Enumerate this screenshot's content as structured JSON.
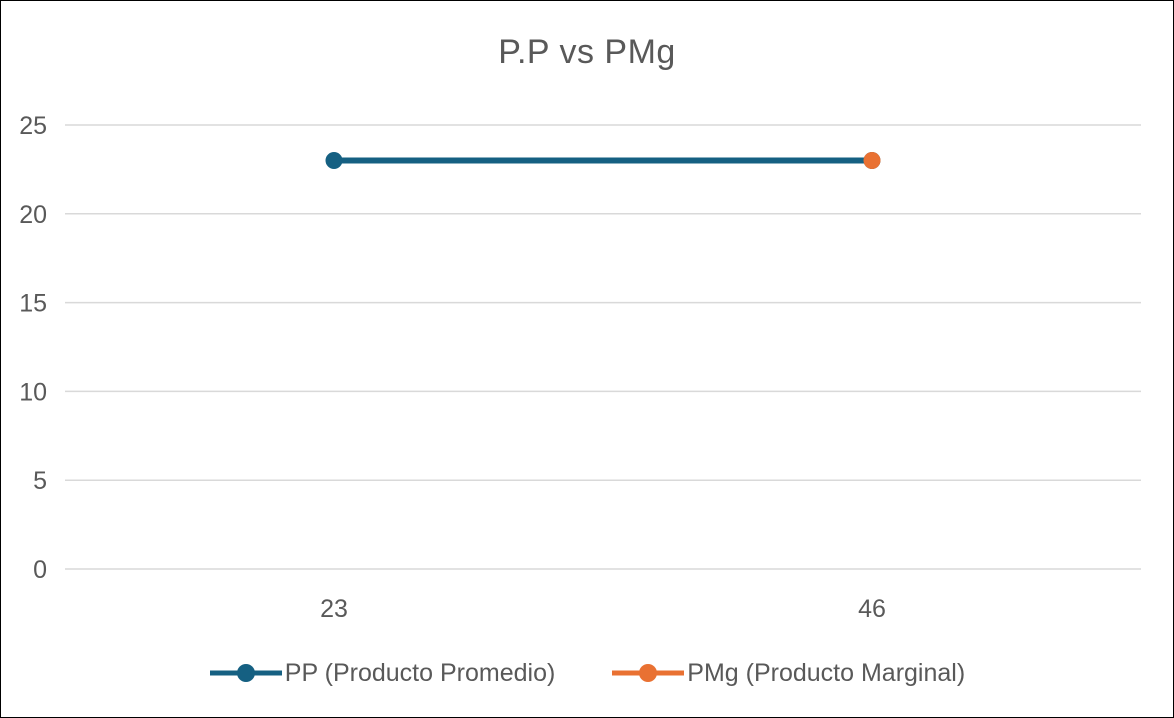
{
  "chart_data": {
    "type": "line",
    "title": "P.P vs PMg",
    "categories": [
      "23",
      "46"
    ],
    "yticks": [
      0,
      5,
      10,
      15,
      20,
      25
    ],
    "ylim": [
      0,
      25
    ],
    "grid": true,
    "legend_position": "bottom",
    "series": [
      {
        "name": "PP (Producto Promedio)",
        "color": "#156082",
        "values": [
          23,
          23
        ]
      },
      {
        "name": "PMg (Producto Marginal)",
        "color": "#E97132",
        "values": [
          null,
          23
        ]
      }
    ]
  },
  "style": {
    "text_color": "#595959",
    "grid_color": "#D9D9D9",
    "background": "#FFFFFF",
    "border_color": "#000000"
  }
}
